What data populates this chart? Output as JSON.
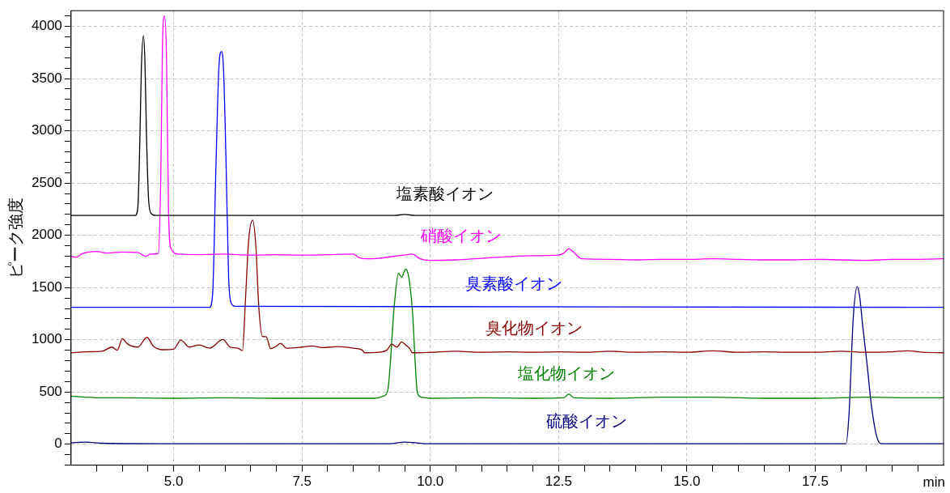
{
  "chart_data": {
    "type": "line",
    "ylabel": "ピーク強度",
    "xlabel": "min",
    "xlim": [
      3.0,
      20.0
    ],
    "ylim": [
      -200,
      4150
    ],
    "grid": true,
    "xticks": [
      {
        "value": 3.5,
        "label": null
      },
      {
        "value": 4,
        "label": null
      },
      {
        "value": 4.5,
        "label": null
      },
      {
        "value": 5,
        "label": "5.0"
      },
      {
        "value": 5.5,
        "label": null
      },
      {
        "value": 6,
        "label": null
      },
      {
        "value": 6.5,
        "label": null
      },
      {
        "value": 7,
        "label": null
      },
      {
        "value": 7.5,
        "label": "7.5"
      },
      {
        "value": 8,
        "label": null
      },
      {
        "value": 8.5,
        "label": null
      },
      {
        "value": 9,
        "label": null
      },
      {
        "value": 9.5,
        "label": null
      },
      {
        "value": 10,
        "label": "10.0"
      },
      {
        "value": 10.5,
        "label": null
      },
      {
        "value": 11,
        "label": null
      },
      {
        "value": 11.5,
        "label": null
      },
      {
        "value": 12,
        "label": null
      },
      {
        "value": 12.5,
        "label": "12.5"
      },
      {
        "value": 13,
        "label": null
      },
      {
        "value": 13.5,
        "label": null
      },
      {
        "value": 14,
        "label": null
      },
      {
        "value": 14.5,
        "label": null
      },
      {
        "value": 15,
        "label": "15.0"
      },
      {
        "value": 15.5,
        "label": null
      },
      {
        "value": 16,
        "label": null
      },
      {
        "value": 16.5,
        "label": null
      },
      {
        "value": 17,
        "label": null
      },
      {
        "value": 17.5,
        "label": "17.5"
      },
      {
        "value": 18,
        "label": null
      },
      {
        "value": 18.5,
        "label": null
      },
      {
        "value": 19,
        "label": null
      },
      {
        "value": 19.5,
        "label": null
      }
    ],
    "yticks": [
      {
        "value": -200,
        "label": null
      },
      {
        "value": -100,
        "label": null
      },
      0,
      {
        "value": 100,
        "label": null
      },
      {
        "value": 200,
        "label": null
      },
      {
        "value": 300,
        "label": null
      },
      {
        "value": 400,
        "label": null
      },
      500,
      {
        "value": 600,
        "label": null
      },
      {
        "value": 700,
        "label": null
      },
      {
        "value": 800,
        "label": null
      },
      {
        "value": 900,
        "label": null
      },
      1000,
      {
        "value": 1100,
        "label": null
      },
      {
        "value": 1200,
        "label": null
      },
      {
        "value": 1300,
        "label": null
      },
      {
        "value": 1400,
        "label": null
      },
      1500,
      {
        "value": 1600,
        "label": null
      },
      {
        "value": 1700,
        "label": null
      },
      {
        "value": 1800,
        "label": null
      },
      {
        "value": 1900,
        "label": null
      },
      2000,
      {
        "value": 2100,
        "label": null
      },
      {
        "value": 2200,
        "label": null
      },
      {
        "value": 2300,
        "label": null
      },
      {
        "value": 2400,
        "label": null
      },
      2500,
      {
        "value": 2600,
        "label": null
      },
      {
        "value": 2700,
        "label": null
      },
      {
        "value": 2800,
        "label": null
      },
      {
        "value": 2900,
        "label": null
      },
      3000,
      {
        "value": 3100,
        "label": null
      },
      {
        "value": 3200,
        "label": null
      },
      {
        "value": 3300,
        "label": null
      },
      {
        "value": 3400,
        "label": null
      },
      3500,
      {
        "value": 3600,
        "label": null
      },
      {
        "value": 3700,
        "label": null
      },
      {
        "value": 3800,
        "label": null
      },
      {
        "value": 3900,
        "label": null
      },
      4000,
      {
        "value": 4100,
        "label": null
      }
    ],
    "series": [
      {
        "name": "塩素酸イオン",
        "color": "#000000",
        "x": [
          3.0,
          4.25,
          4.3,
          4.34,
          4.37,
          4.41,
          4.44,
          4.47,
          4.51,
          4.56,
          4.65,
          9.3,
          9.5,
          9.7,
          20.0
        ],
        "values": [
          2190,
          2190,
          2260,
          2900,
          3600,
          3910,
          3650,
          2950,
          2350,
          2210,
          2190,
          2190,
          2200,
          2190,
          2190
        ]
      },
      {
        "name": "硝酸イオン",
        "color": "#ff00ff",
        "x": [
          3.0,
          3.1,
          3.2,
          3.5,
          3.7,
          4.0,
          4.3,
          4.45,
          4.55,
          4.7,
          4.75,
          4.78,
          4.82,
          4.86,
          4.9,
          4.95,
          5.1,
          5.5,
          6.0,
          6.5,
          7.0,
          7.5,
          8.0,
          8.5,
          8.6,
          8.75,
          9.0,
          9.3,
          9.55,
          9.65,
          9.8,
          10.0,
          10.5,
          11.0,
          12.0,
          12.5,
          12.6,
          12.7,
          12.8,
          12.95,
          13.5,
          14.0,
          14.5,
          15.0,
          15.5,
          16.0,
          16.5,
          17.0,
          17.5,
          18.0,
          18.5,
          19.0,
          19.5,
          20.0
        ],
        "values": [
          1800,
          1790,
          1820,
          1845,
          1830,
          1840,
          1835,
          1800,
          1820,
          1825,
          2600,
          3800,
          4100,
          3700,
          2200,
          1870,
          1820,
          1815,
          1820,
          1810,
          1815,
          1810,
          1815,
          1820,
          1790,
          1775,
          1780,
          1800,
          1815,
          1820,
          1775,
          1760,
          1765,
          1780,
          1805,
          1810,
          1830,
          1870,
          1835,
          1775,
          1770,
          1765,
          1770,
          1770,
          1775,
          1770,
          1765,
          1765,
          1770,
          1765,
          1760,
          1770,
          1770,
          1775
        ]
      },
      {
        "name": "臭素酸イオン",
        "color": "#0000ff",
        "x": [
          3.0,
          5.7,
          5.76,
          5.82,
          5.88,
          5.93,
          5.97,
          6.02,
          6.07,
          6.12,
          6.2,
          20.0
        ],
        "values": [
          1310,
          1310,
          1450,
          2600,
          3600,
          3760,
          3600,
          2700,
          1600,
          1350,
          1320,
          1310
        ]
      },
      {
        "name": "臭化物イオン",
        "color": "#8b0000",
        "x": [
          3.0,
          3.3,
          3.6,
          3.8,
          3.9,
          4.0,
          4.1,
          4.3,
          4.48,
          4.6,
          4.8,
          5.0,
          5.14,
          5.3,
          5.5,
          5.7,
          5.96,
          6.1,
          6.25,
          6.34,
          6.4,
          6.46,
          6.54,
          6.6,
          6.66,
          6.73,
          6.8,
          6.89,
          7.0,
          7.08,
          7.2,
          7.5,
          7.69,
          7.9,
          8.2,
          8.5,
          8.67,
          8.72,
          9.0,
          9.15,
          9.25,
          9.35,
          9.44,
          9.52,
          9.6,
          9.65,
          10.0,
          10.5,
          11.0,
          11.5,
          12.0,
          12.5,
          13.0,
          13.5,
          14.0,
          14.5,
          15.0,
          15.5,
          16.0,
          16.5,
          17.0,
          17.5,
          18.0,
          18.5,
          19.0,
          19.3,
          19.6,
          20.0
        ],
        "values": [
          876,
          885,
          890,
          930,
          900,
          1010,
          960,
          930,
          1023,
          940,
          905,
          910,
          997,
          930,
          950,
          920,
          1002,
          930,
          920,
          896,
          1400,
          1950,
          2145,
          1900,
          1300,
          1031,
          1030,
          915,
          940,
          966,
          920,
          930,
          940,
          925,
          935,
          920,
          902,
          876,
          880,
          900,
          958,
          930,
          979,
          950,
          915,
          876,
          880,
          890,
          880,
          885,
          880,
          885,
          880,
          890,
          880,
          885,
          880,
          895,
          880,
          885,
          880,
          880,
          890,
          880,
          885,
          895,
          880,
          876
        ]
      },
      {
        "name": "塩化物イオン",
        "color": "#008000",
        "x": [
          3.0,
          3.5,
          4.0,
          5.0,
          6.0,
          7.0,
          8.0,
          8.9,
          9.09,
          9.17,
          9.3,
          9.38,
          9.44,
          9.52,
          9.58,
          9.65,
          9.75,
          9.83,
          10.0,
          11.0,
          12.0,
          12.6,
          12.7,
          12.8,
          13.5,
          14.5,
          15.5,
          16.5,
          17.5,
          18.5,
          19.5,
          20.0
        ],
        "values": [
          460,
          445,
          445,
          440,
          445,
          440,
          440,
          440,
          463,
          515,
          1340,
          1637,
          1598,
          1676,
          1600,
          1289,
          489,
          450,
          440,
          445,
          440,
          445,
          480,
          445,
          440,
          450,
          450,
          440,
          440,
          450,
          445,
          445
        ]
      },
      {
        "name": "硫酸イオン",
        "color": "#000080",
        "x": [
          3.0,
          3.3,
          3.6,
          5.0,
          9.2,
          9.5,
          9.7,
          9.9,
          18.1,
          18.16,
          18.24,
          18.32,
          18.37,
          18.42,
          18.51,
          18.6,
          18.72,
          18.8,
          20.0
        ],
        "values": [
          15,
          20,
          10,
          5,
          5,
          20,
          15,
          5,
          5,
          300,
          1200,
          1510,
          1400,
          1158,
          766,
          350,
          40,
          5,
          5
        ]
      }
    ]
  }
}
